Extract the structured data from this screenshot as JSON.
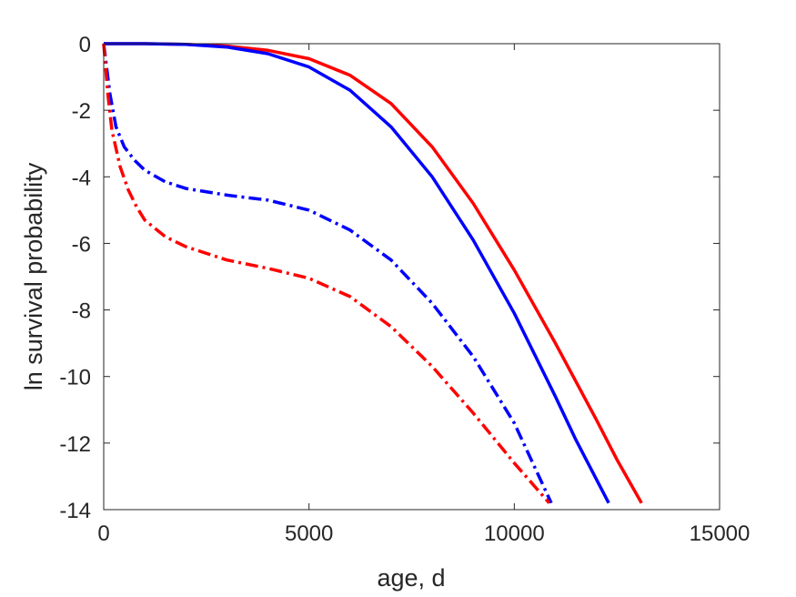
{
  "chart_data": {
    "type": "line",
    "title": "",
    "xlabel": "age, d",
    "ylabel": "ln survival probability",
    "xlim": [
      0,
      15000
    ],
    "ylim": [
      -14,
      0
    ],
    "xticks": [
      0,
      5000,
      10000,
      15000
    ],
    "yticks": [
      0,
      -2,
      -4,
      -6,
      -8,
      -10,
      -12,
      -14
    ],
    "xtick_labels": [
      "0",
      "5000",
      "10000",
      "15000"
    ],
    "ytick_labels": [
      "0",
      "-2",
      "-4",
      "-6",
      "-8",
      "-10",
      "-12",
      "-14"
    ],
    "grid": false,
    "legend": "none",
    "series": [
      {
        "color": "#ff0000",
        "style": "solid",
        "x": [
          0,
          1000,
          2000,
          3000,
          4000,
          5000,
          6000,
          7000,
          8000,
          9000,
          10000,
          11000,
          12000,
          12500,
          13100
        ],
        "y": [
          0,
          0,
          -0.02,
          -0.07,
          -0.2,
          -0.45,
          -0.95,
          -1.8,
          -3.1,
          -4.8,
          -6.8,
          -9.0,
          -11.3,
          -12.5,
          -13.8
        ]
      },
      {
        "color": "#0000ff",
        "style": "solid",
        "x": [
          0,
          1000,
          2000,
          3000,
          4000,
          5000,
          6000,
          7000,
          8000,
          9000,
          10000,
          11000,
          11500,
          12300
        ],
        "y": [
          0,
          0,
          -0.02,
          -0.1,
          -0.3,
          -0.7,
          -1.4,
          -2.5,
          -4.0,
          -5.9,
          -8.1,
          -10.6,
          -11.9,
          -13.8
        ]
      },
      {
        "color": "#0000ff",
        "style": "dashdot",
        "x": [
          0,
          150,
          300,
          500,
          750,
          1000,
          1500,
          2000,
          3000,
          4000,
          5000,
          6000,
          7000,
          8000,
          9000,
          10000,
          10900
        ],
        "y": [
          0,
          -1.5,
          -2.5,
          -3.1,
          -3.5,
          -3.8,
          -4.15,
          -4.35,
          -4.55,
          -4.7,
          -5.0,
          -5.6,
          -6.5,
          -7.8,
          -9.4,
          -11.4,
          -13.8
        ]
      },
      {
        "color": "#ff0000",
        "style": "dashdot",
        "x": [
          0,
          100,
          200,
          400,
          600,
          800,
          1000,
          1500,
          2000,
          3000,
          4000,
          5000,
          6000,
          7000,
          8000,
          9000,
          10000,
          10850
        ],
        "y": [
          0,
          -1.5,
          -2.6,
          -3.7,
          -4.4,
          -4.9,
          -5.3,
          -5.8,
          -6.1,
          -6.5,
          -6.75,
          -7.05,
          -7.6,
          -8.5,
          -9.7,
          -11.1,
          -12.6,
          -13.8
        ]
      }
    ]
  }
}
